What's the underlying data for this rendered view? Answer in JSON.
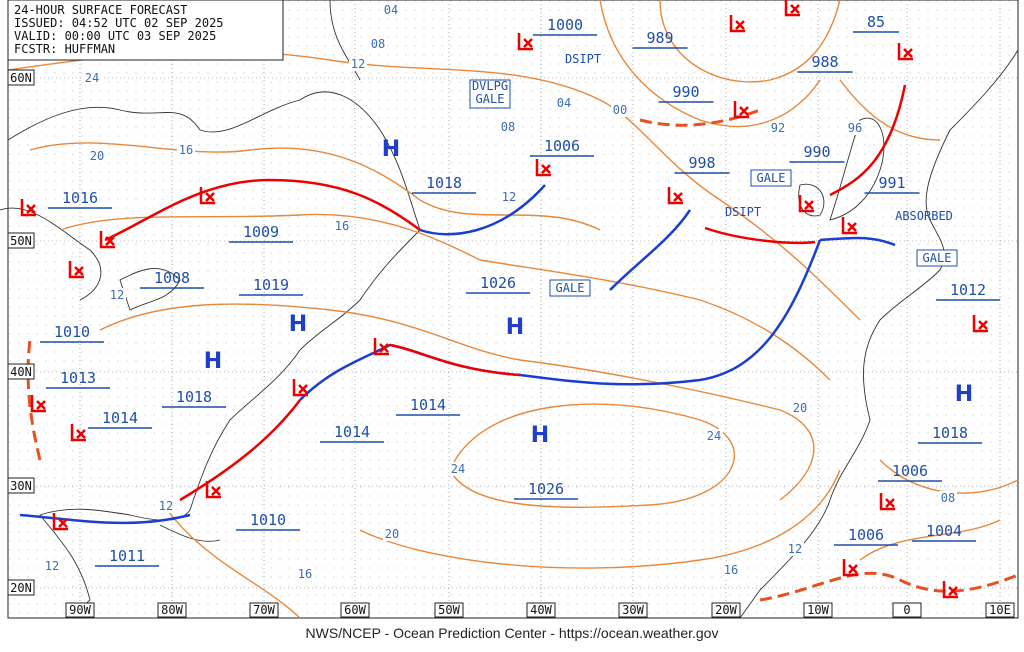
{
  "header": {
    "title": "24-HOUR SURFACE FORECAST",
    "issued": "ISSUED: 04:52 UTC 02 SEP 2025",
    "valid": "VALID:  00:00 UTC 03 SEP 2025",
    "forecaster": "FCSTR:  HUFFMAN"
  },
  "footer": "NWS/NCEP - Ocean Prediction Center - https://ocean.weather.gov",
  "latitude_labels": [
    "60N",
    "50N",
    "40N",
    "30N",
    "20N"
  ],
  "longitude_labels": [
    "90W",
    "80W",
    "70W",
    "60W",
    "50W",
    "40W",
    "30W",
    "20W",
    "10W",
    "0",
    "10E"
  ],
  "pressure_labels": [
    "1000",
    "989",
    "85",
    "988",
    "990",
    "1006",
    "998",
    "990",
    "991",
    "1016",
    "1018",
    "1009",
    "1008",
    "1019",
    "1026",
    "1012",
    "1010",
    "1013",
    "1018",
    "1014",
    "1014",
    "1014",
    "1018",
    "1006",
    "1026",
    "1010",
    "1006",
    "1004",
    "1011"
  ],
  "high_centers": [
    "H",
    "H",
    "H",
    "H",
    "H",
    "H"
  ],
  "isobar_labels": [
    "24",
    "04",
    "08",
    "12",
    "20",
    "16",
    "04",
    "00",
    "08",
    "12",
    "16",
    "92",
    "96",
    "12",
    "20",
    "24",
    "24",
    "08",
    "12",
    "20",
    "12",
    "16",
    "16",
    "12"
  ],
  "annotations": [
    "DSIPT",
    "DSIPT",
    "ABSORBED"
  ],
  "boxed_annotations": [
    "DVLPG",
    "GALE",
    "GALE",
    "GALE",
    "GALE"
  ]
}
